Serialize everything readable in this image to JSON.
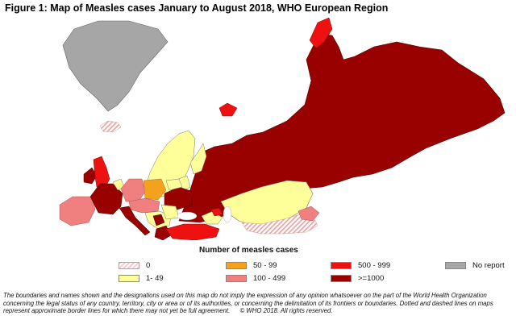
{
  "figure": {
    "title": "Figure 1: Map of Measles cases January to August 2018, WHO European Region"
  },
  "legend": {
    "title": "Number of measles cases",
    "items": [
      {
        "label": "0",
        "color": "#f3c4c4",
        "pattern": "hatch"
      },
      {
        "label": "1- 49",
        "color": "#ffff99",
        "pattern": "solid"
      },
      {
        "label": "50 - 99",
        "color": "#f4a21e",
        "pattern": "solid"
      },
      {
        "label": "100 - 499",
        "color": "#f08080",
        "pattern": "solid"
      },
      {
        "label": "500 - 999",
        "color": "#ee1111",
        "pattern": "solid"
      },
      {
        "label": ">=1000",
        "color": "#990000",
        "pattern": "solid"
      },
      {
        "label": "No report",
        "color": "#a6a6a6",
        "pattern": "solid"
      }
    ]
  },
  "disclaimer": {
    "text": "The boundaries and names shown and the designations used on this map do not imply the expression of any opinion whatsoever on the part of the World Health Organization concerning the legal status of any country, territory, city or area or of its authorities, or concerning the delimitation of its frontiers or boundaries. Dotted and dashed lines on maps represent approximate border lines for which there may not yet be full agreement.",
    "copyright": "© WHO 2018. All rights reserved."
  }
}
